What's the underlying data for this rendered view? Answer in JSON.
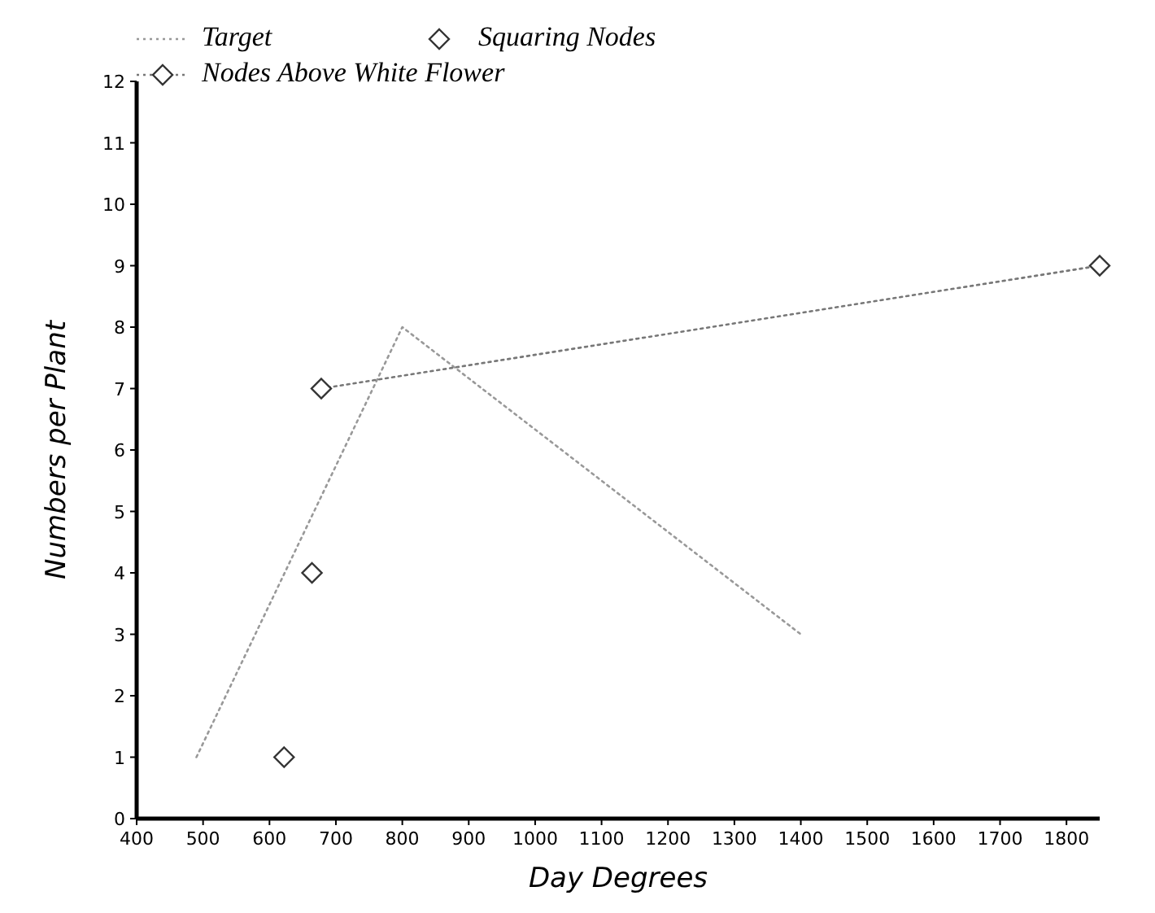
{
  "chart_data": {
    "type": "line",
    "xlabel": "Day Degrees",
    "ylabel": "Numbers per Plant",
    "xlim": [
      400,
      1850
    ],
    "xticks": [
      400,
      500,
      600,
      700,
      800,
      900,
      1000,
      1100,
      1200,
      1300,
      1400,
      1500,
      1600,
      1700,
      1800
    ],
    "ylim": [
      0,
      12
    ],
    "yticks": [
      0,
      1,
      2,
      3,
      4,
      5,
      6,
      7,
      8,
      9,
      10,
      11,
      12
    ],
    "grid": false,
    "legend": "top left",
    "series": [
      {
        "name": "Target",
        "color": "#999999",
        "line_style": "dotted",
        "marker": "none",
        "x": [
          490,
          800,
          1400
        ],
        "values": [
          1,
          8,
          3
        ]
      },
      {
        "name": "Squaring Nodes",
        "type": "scatter",
        "color": "#333333",
        "marker": "diamond",
        "x": [
          622,
          664
        ],
        "values": [
          1,
          4
        ]
      },
      {
        "name": "Nodes Above White Flower",
        "color": "#777777",
        "line_style": "dotted",
        "marker": "diamond",
        "x": [
          678,
          1850
        ],
        "values": [
          7,
          9
        ]
      }
    ]
  }
}
